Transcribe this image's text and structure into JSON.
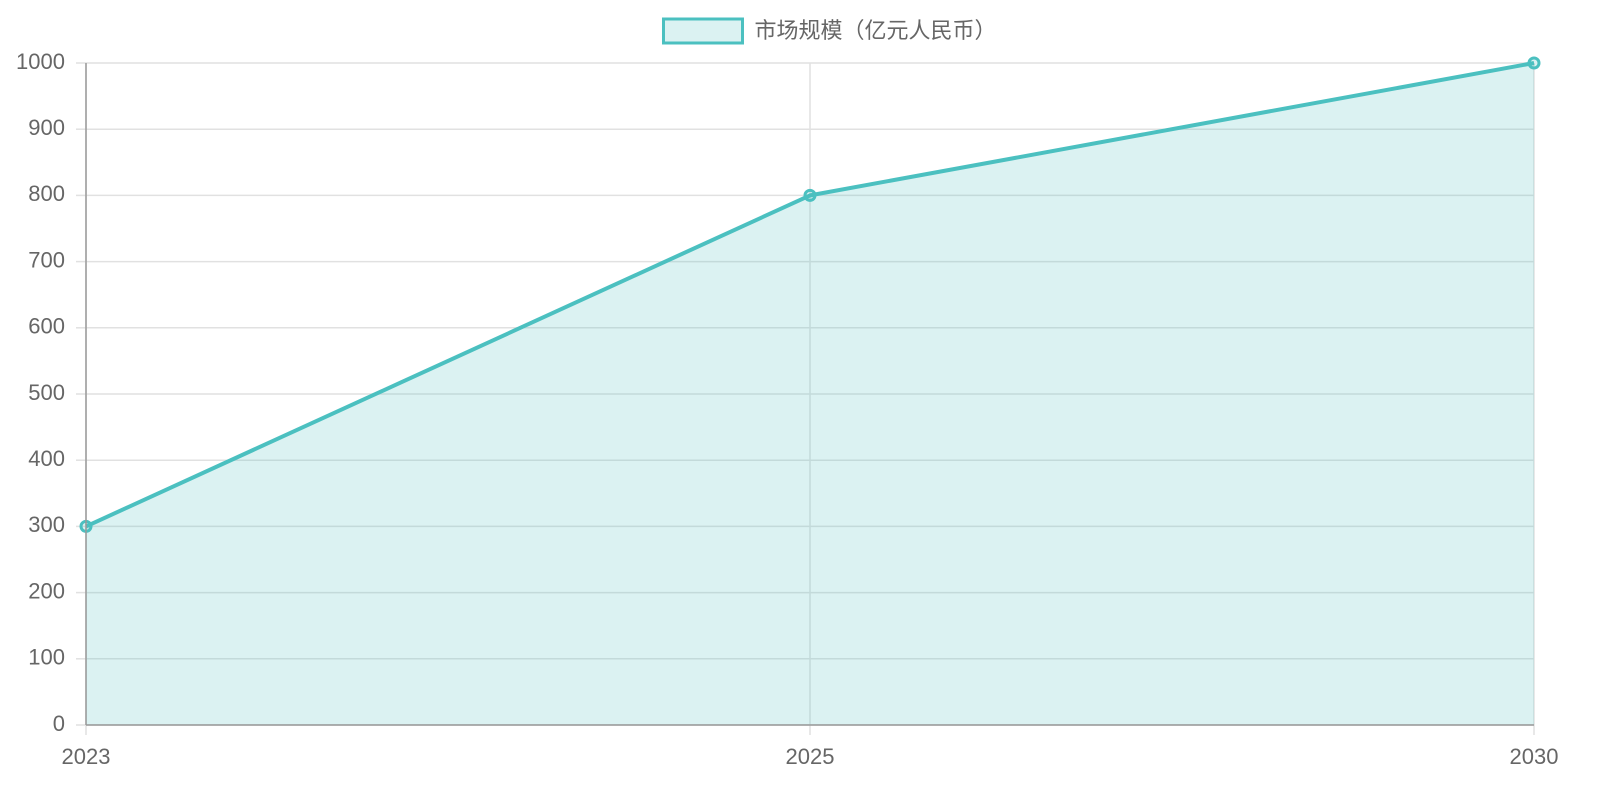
{
  "chart_data": {
    "type": "line",
    "categories": [
      "2023",
      "2025",
      "2030"
    ],
    "series": [
      {
        "name": "市场规模（亿元人民币）",
        "color": "#4bc0c0",
        "values": [
          300,
          800,
          1000
        ]
      }
    ],
    "ylim": [
      0,
      1000
    ],
    "yticks": [
      0,
      100,
      200,
      300,
      400,
      500,
      600,
      700,
      800,
      900,
      1000
    ],
    "grid": true,
    "fill": true,
    "legend": "top"
  }
}
